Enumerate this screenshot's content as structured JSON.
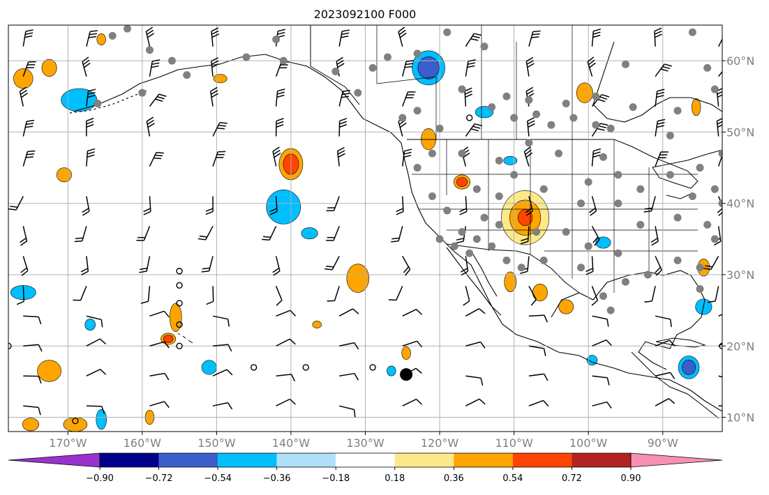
{
  "title": "2023092100 F000",
  "map": {
    "projection": "PlateCarree",
    "lon_range": [
      -178,
      -82
    ],
    "lat_range": [
      8,
      65
    ],
    "lon_ticks": [
      {
        "value": -170,
        "label": "170°W"
      },
      {
        "value": -160,
        "label": "160°W"
      },
      {
        "value": -150,
        "label": "150°W"
      },
      {
        "value": -140,
        "label": "140°W"
      },
      {
        "value": -130,
        "label": "130°W"
      },
      {
        "value": -120,
        "label": "120°W"
      },
      {
        "value": -110,
        "label": "110°W"
      },
      {
        "value": -100,
        "label": "100°W"
      },
      {
        "value": -90,
        "label": "90°W"
      }
    ],
    "lat_ticks": [
      {
        "value": 60,
        "label": "60°N"
      },
      {
        "value": 50,
        "label": "50°N"
      },
      {
        "value": 40,
        "label": "40°N"
      },
      {
        "value": 30,
        "label": "30°N"
      },
      {
        "value": 20,
        "label": "20°N"
      },
      {
        "value": 10,
        "label": "10°N"
      }
    ],
    "grid": true,
    "colors": {
      "grid": "#b0b0b0",
      "coast": "#000000",
      "station": "#808080",
      "barb": "#000000"
    }
  },
  "colorbar": {
    "extend": "both",
    "levels": [
      -0.9,
      -0.72,
      -0.54,
      -0.36,
      -0.18,
      0.18,
      0.36,
      0.54,
      0.72,
      0.9
    ],
    "tick_labels": [
      "−0.90",
      "−0.72",
      "−0.54",
      "−0.36",
      "−0.18",
      "0.18",
      "0.36",
      "0.54",
      "0.72",
      "0.90"
    ],
    "colors": [
      "#9932cc",
      "#00008b",
      "#3a5fcd",
      "#00bfff",
      "#b0e0f8",
      "#ffffff",
      "#fce98a",
      "#ffa500",
      "#ff4500",
      "#b22222",
      "#f78fb0"
    ]
  },
  "shaded_regions": [
    {
      "lon": -121.5,
      "lat": 59.0,
      "rx": 2.2,
      "ry": 2.4,
      "levels": [
        "neg_mid",
        "neg_strong"
      ]
    },
    {
      "lon": -168.5,
      "lat": 54.5,
      "rx": 2.4,
      "ry": 1.6,
      "levels": [
        "neg_mid"
      ]
    },
    {
      "lon": -141.0,
      "lat": 39.5,
      "rx": 2.3,
      "ry": 2.4,
      "levels": [
        "neg_mid"
      ]
    },
    {
      "lon": -137.5,
      "lat": 35.8,
      "rx": 1.1,
      "ry": 0.8,
      "levels": [
        "neg_mid"
      ]
    },
    {
      "lon": -176.0,
      "lat": 27.5,
      "rx": 1.7,
      "ry": 1.0,
      "levels": [
        "neg_mid"
      ]
    },
    {
      "lon": -167.0,
      "lat": 23.0,
      "rx": 0.7,
      "ry": 0.8,
      "levels": [
        "neg_mid"
      ]
    },
    {
      "lon": -165.5,
      "lat": 9.7,
      "rx": 0.7,
      "ry": 1.4,
      "levels": [
        "neg_mid"
      ]
    },
    {
      "lon": -86.5,
      "lat": 17.0,
      "rx": 1.4,
      "ry": 1.6,
      "levels": [
        "neg_mid",
        "neg_strong"
      ]
    },
    {
      "lon": -84.5,
      "lat": 25.5,
      "rx": 1.1,
      "ry": 1.1,
      "levels": [
        "neg_mid"
      ]
    },
    {
      "lon": -98.0,
      "lat": 34.5,
      "rx": 1.0,
      "ry": 0.8,
      "levels": [
        "neg_mid"
      ]
    },
    {
      "lon": -99.5,
      "lat": 18.0,
      "rx": 0.7,
      "ry": 0.7,
      "levels": [
        "neg_mid"
      ]
    },
    {
      "lon": -126.5,
      "lat": 16.5,
      "rx": 0.6,
      "ry": 0.7,
      "levels": [
        "neg_mid"
      ]
    },
    {
      "lon": -114.0,
      "lat": 52.8,
      "rx": 1.2,
      "ry": 0.8,
      "levels": [
        "neg_mid"
      ]
    },
    {
      "lon": -110.5,
      "lat": 46.0,
      "rx": 0.9,
      "ry": 0.6,
      "levels": [
        "neg_mid"
      ]
    },
    {
      "lon": -151.0,
      "lat": 17.0,
      "rx": 1.0,
      "ry": 1.0,
      "levels": [
        "neg_mid"
      ]
    },
    {
      "lon": -108.5,
      "lat": 38.0,
      "rx": 3.2,
      "ry": 3.8,
      "levels": [
        "pos_weak",
        "pos_mid",
        "pos_strong"
      ]
    },
    {
      "lon": -140.0,
      "lat": 45.5,
      "rx": 1.6,
      "ry": 2.2,
      "levels": [
        "pos_mid",
        "pos_strong"
      ]
    },
    {
      "lon": -117.0,
      "lat": 43.0,
      "rx": 1.1,
      "ry": 1.0,
      "levels": [
        "pos_mid",
        "pos_strong"
      ]
    },
    {
      "lon": -121.5,
      "lat": 49.0,
      "rx": 1.0,
      "ry": 1.5,
      "levels": [
        "pos_mid"
      ]
    },
    {
      "lon": -100.5,
      "lat": 55.5,
      "rx": 1.1,
      "ry": 1.4,
      "levels": [
        "pos_mid"
      ]
    },
    {
      "lon": -131.0,
      "lat": 29.5,
      "rx": 1.5,
      "ry": 2.0,
      "levels": [
        "pos_mid"
      ]
    },
    {
      "lon": -155.5,
      "lat": 24.0,
      "rx": 0.8,
      "ry": 2.0,
      "levels": [
        "pos_mid"
      ]
    },
    {
      "lon": -172.5,
      "lat": 16.5,
      "rx": 1.6,
      "ry": 1.5,
      "levels": [
        "pos_mid"
      ]
    },
    {
      "lon": -169.0,
      "lat": 9.0,
      "rx": 1.6,
      "ry": 1.0,
      "levels": [
        "pos_mid"
      ]
    },
    {
      "lon": -175.0,
      "lat": 9.0,
      "rx": 1.1,
      "ry": 0.9,
      "levels": [
        "pos_mid"
      ]
    },
    {
      "lon": -170.5,
      "lat": 44.0,
      "rx": 1.0,
      "ry": 1.0,
      "levels": [
        "pos_mid"
      ]
    },
    {
      "lon": -176.0,
      "lat": 57.5,
      "rx": 1.3,
      "ry": 1.4,
      "levels": [
        "pos_mid"
      ]
    },
    {
      "lon": -172.5,
      "lat": 59.0,
      "rx": 1.0,
      "ry": 1.2,
      "levels": [
        "pos_mid"
      ]
    },
    {
      "lon": -149.5,
      "lat": 57.5,
      "rx": 0.9,
      "ry": 0.6,
      "levels": [
        "pos_mid"
      ]
    },
    {
      "lon": -156.5,
      "lat": 21.0,
      "rx": 1.0,
      "ry": 0.8,
      "levels": [
        "pos_mid",
        "pos_strong"
      ]
    },
    {
      "lon": -85.5,
      "lat": 53.5,
      "rx": 0.6,
      "ry": 1.2,
      "levels": [
        "pos_mid"
      ]
    },
    {
      "lon": -84.5,
      "lat": 31.0,
      "rx": 0.8,
      "ry": 1.2,
      "levels": [
        "pos_mid"
      ]
    },
    {
      "lon": -106.5,
      "lat": 27.5,
      "rx": 1.0,
      "ry": 1.2,
      "levels": [
        "pos_mid"
      ]
    },
    {
      "lon": -103.0,
      "lat": 25.5,
      "rx": 1.0,
      "ry": 1.0,
      "levels": [
        "pos_mid"
      ]
    },
    {
      "lon": -110.5,
      "lat": 29.0,
      "rx": 0.8,
      "ry": 1.4,
      "levels": [
        "pos_mid"
      ]
    },
    {
      "lon": -124.5,
      "lat": 19.0,
      "rx": 0.6,
      "ry": 0.9,
      "levels": [
        "pos_mid"
      ]
    },
    {
      "lon": -136.5,
      "lat": 23.0,
      "rx": 0.6,
      "ry": 0.5,
      "levels": [
        "pos_mid"
      ]
    },
    {
      "lon": -159.0,
      "lat": 10.0,
      "rx": 0.6,
      "ry": 1.0,
      "levels": [
        "pos_mid"
      ]
    },
    {
      "lon": -165.5,
      "lat": 63.0,
      "rx": 0.6,
      "ry": 0.8,
      "levels": [
        "pos_mid"
      ]
    }
  ],
  "stations_filled": [
    [
      -162,
      64.5
    ],
    [
      -159,
      61.5
    ],
    [
      -164,
      63.5
    ],
    [
      -156,
      60
    ],
    [
      -154,
      58
    ],
    [
      -166,
      54
    ],
    [
      -160,
      55.5
    ],
    [
      -142,
      63
    ],
    [
      -146,
      60.5
    ],
    [
      -141,
      60
    ],
    [
      -134,
      58.5
    ],
    [
      -131,
      55.5
    ],
    [
      -129,
      59
    ],
    [
      -127,
      60.5
    ],
    [
      -123,
      61
    ],
    [
      -119,
      64
    ],
    [
      -114,
      62
    ],
    [
      -117,
      56
    ],
    [
      -123,
      53
    ],
    [
      -120,
      50.5
    ],
    [
      -125,
      52
    ],
    [
      -113,
      53.5
    ],
    [
      -110,
      52
    ],
    [
      -107,
      52.5
    ],
    [
      -105,
      51
    ],
    [
      -102,
      52
    ],
    [
      -99,
      51
    ],
    [
      -97,
      50.5
    ],
    [
      -94,
      53.5
    ],
    [
      -89,
      49.5
    ],
    [
      -88,
      53
    ],
    [
      -84,
      59
    ],
    [
      -86,
      64
    ],
    [
      -95,
      59.5
    ],
    [
      -99,
      55
    ],
    [
      -103,
      54
    ],
    [
      -108,
      54.5
    ],
    [
      -111,
      55
    ],
    [
      -112,
      46
    ],
    [
      -108,
      48.5
    ],
    [
      -104,
      47
    ],
    [
      -98,
      46.5
    ],
    [
      -100,
      43
    ],
    [
      -96,
      44
    ],
    [
      -93,
      42
    ],
    [
      -89,
      44
    ],
    [
      -86,
      41
    ],
    [
      -83,
      42
    ],
    [
      -110,
      44
    ],
    [
      -106,
      42
    ],
    [
      -101,
      40
    ],
    [
      -96,
      40
    ],
    [
      -93,
      37
    ],
    [
      -88,
      38
    ],
    [
      -84,
      37
    ],
    [
      -107,
      36
    ],
    [
      -103,
      36
    ],
    [
      -100,
      34
    ],
    [
      -96,
      33
    ],
    [
      -92,
      30
    ],
    [
      -88,
      32
    ],
    [
      -85,
      31
    ],
    [
      -106,
      32
    ],
    [
      -101,
      31
    ],
    [
      -98,
      27
    ],
    [
      -95,
      29
    ],
    [
      -112,
      41
    ],
    [
      -114,
      38
    ],
    [
      -117,
      36
    ],
    [
      -119,
      39
    ],
    [
      -121,
      41
    ],
    [
      -123,
      45
    ],
    [
      -121,
      47
    ],
    [
      -117,
      47
    ],
    [
      -115,
      42
    ],
    [
      -113,
      34
    ],
    [
      -111,
      32
    ],
    [
      -109,
      31
    ],
    [
      -115,
      35
    ],
    [
      -112,
      37
    ],
    [
      -118,
      34
    ],
    [
      -116,
      33
    ],
    [
      -120,
      35
    ],
    [
      -85,
      45
    ],
    [
      -83,
      35
    ],
    [
      -85,
      28
    ],
    [
      -97,
      25
    ],
    [
      -83,
      56
    ],
    [
      -82,
      47
    ],
    [
      -82,
      40
    ]
  ],
  "stations_open": [
    [
      -155,
      30.5
    ],
    [
      -155,
      28.5
    ],
    [
      -155,
      26
    ],
    [
      -155,
      23
    ],
    [
      -155,
      20
    ],
    [
      -145,
      17
    ],
    [
      -138,
      17
    ],
    [
      -129,
      17
    ],
    [
      -169,
      9.5
    ],
    [
      -178,
      20
    ],
    [
      -82,
      20
    ],
    [
      -116,
      52
    ]
  ],
  "stations_large": [
    [
      -124.5,
      16
    ]
  ],
  "barb_grid": {
    "lon_start": -176,
    "lon_step": 8.5,
    "lat_start": 62,
    "lat_step": 4.2
  }
}
